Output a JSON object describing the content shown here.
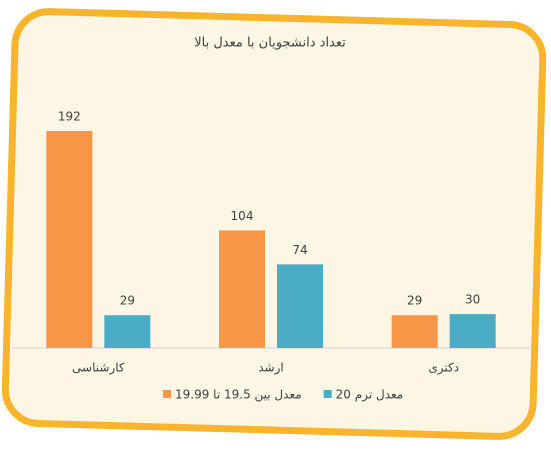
{
  "chart_data": {
    "type": "bar",
    "title": "تعداد دانشجویان با معدل بالا",
    "categories": [
      "کارشناسی",
      "ارشد",
      "دکتری"
    ],
    "series": [
      {
        "name": "معدل بین 19.5 تا 19.99",
        "color": "#f79646",
        "values": [
          192,
          104,
          29
        ]
      },
      {
        "name": "معدل ترم 20",
        "color": "#4bacc6",
        "values": [
          29,
          74,
          30
        ]
      }
    ]
  }
}
